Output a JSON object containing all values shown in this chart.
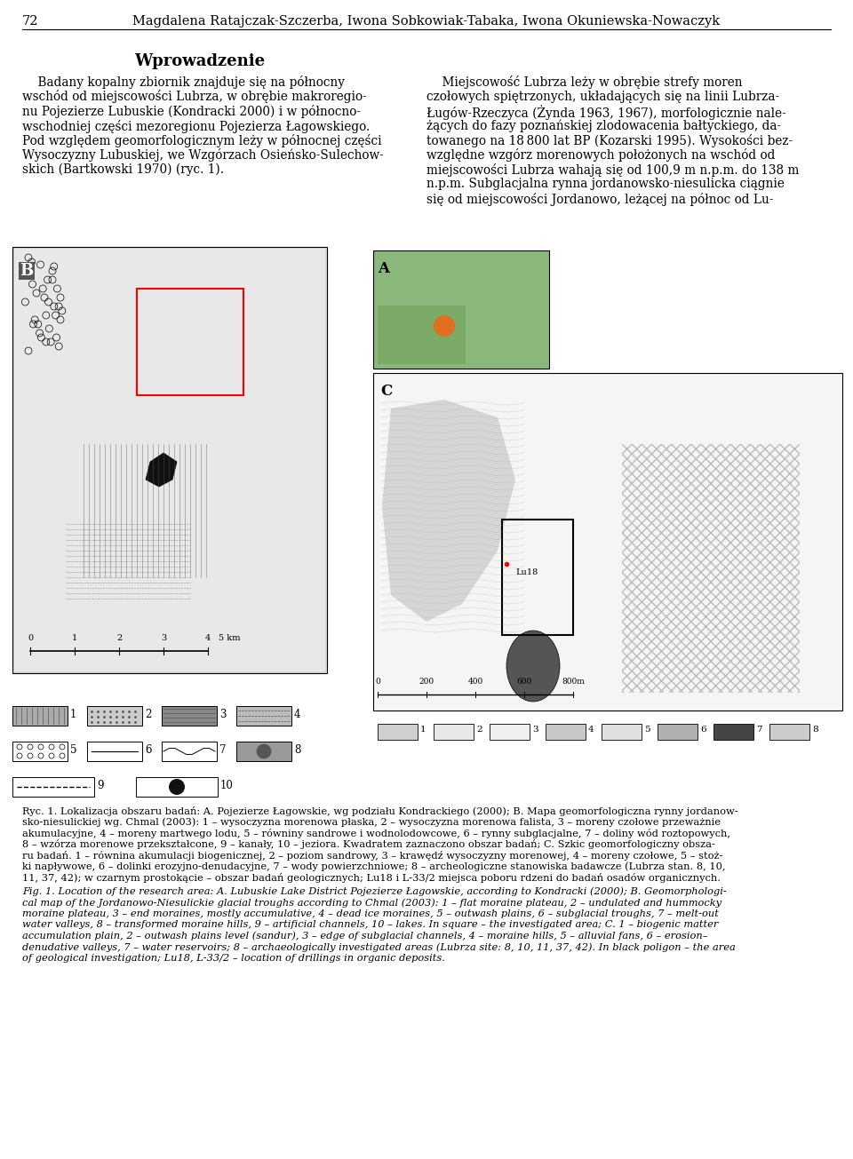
{
  "page_number": "72",
  "header_text": "Magdalena Ratajczak-Szczerba, Iwona Sobkowiak-Tabaka, Iwona Okuniewska-Nowaczyk",
  "section_title": "Wprowadzenie",
  "left_col_lines": [
    "    Badany kopalny zbiornik znajduje się na północny",
    "wschód od miejscowości Lubrza, w obrębie makroregio-",
    "nu Pojezierze Lubuskie (Kondracki 2000) i w północno-",
    "wschodniej części mezoregionu Pojezierza Łagowskiego.",
    "Pod względem geomorfologicznym leży w północnej części",
    "Wysoczyzny Lubuskiej, we Wzgórzach Osieńsko-Sulechow-",
    "skich (Bartkowski 1970) (ryc. 1)."
  ],
  "right_col_lines": [
    "    Miejscowość Lubrza leży w obrębie strefy moren",
    "czołowych spiętrzonych, układających się na linii Lubrza-",
    "Ługów-Rzeczyca (Żynda 1963, 1967), morfologicznie nale-",
    "żących do fazy poznańskiej zlodowacenia bałtyckiego, da-",
    "towanego na 18 800 lat BP (Kozarski 1995). Wysokości bez-",
    "względne wzgórz morenowych położonych na wschód od",
    "miejscowości Lubrza wahają się od 100,9 m n.p.m. do 138 m",
    "n.p.m. Subglacjalna rynna jordanowsko-niesulicka ciągnie",
    "się od miejscowości Jordanowo, leżącej na północ od Lu-"
  ],
  "caption_pl_line1": "Ryc. 1. Lokalizacja obszaru badań: A. Pojezierze Łagowskie, wg podziału Kondrackiego (2000); B. Mapa geomorfologiczna rynny jordanow-",
  "caption_pl_line2": "sko-niesulickiej wg. Chmal (2003): 1 – wysoczyzna morenowa płaska, 2 – wysoczyzna morenowa falista, 3 – moreny czołowe przeważnie",
  "caption_pl_line3": "akumulacyjne, 4 – moreny martwego lodu, 5 – równiny sandrowe i wodnolodowcowe, 6 – rynny subglacjalne, 7 – doliny wód roztopowych,",
  "caption_pl_line4": "8 – wzórza morenowe przekształcone, 9 – kanały, 10 – jeziora. Kwadratem zaznaczono obszar badań; C. Szkic geomorfologiczny obsza-",
  "caption_pl_line4b": "ru badań. 1 – równina akumulacji biogenicznej, 2 – poziom sandrowy, 3 – krawędź wysoczyzny morenowej, 4 – moreny czołowe, 5 – stoż-",
  "caption_pl_line5": "ki napływowe, 6 – dolinki erozyjno-denudacyjne, 7 – wody powierzchniowe; 8 – archeologiczne stanowiska badawcze (Lubrza stan. 8, 10,",
  "caption_pl_line6": "11, 37, 42); w czarnym prostokącie – obszar badań geologicznych; Lu18 i L-33/2 miejsca poboru rdzeni do badań osadów organicznych.",
  "caption_en_line1": "Fig. 1. Location of the research area: A. Lubuskie Lake District Pojezierze Łagowskie, according to Kondracki (2000); B. Geomorphologi-",
  "caption_en_line2": "cal map of the Jordanowo-Niesulickie glacial troughs according to Chmal (2003): 1 – flat moraine plateau, 2 – undulated and hummocky",
  "caption_en_line3": "moraine plateau, 3 – end moraines, mostly accumulative, 4 – dead ice moraines, 5 – outwash plains, 6 – subglacial troughs, 7 – melt-out",
  "caption_en_line4": "water valleys, 8 – transformed moraine hills, 9 – artificial channels, 10 – lakes. In square – the investigated area; C. 1 – biogenic matter",
  "caption_en_line5": "accumulation plain, 2 – outwash plains level (sandur), 3 – edge of subglacial channels, 4 – moraine hills, 5 – alluvial fans, 6 – erosion–",
  "caption_en_line6": "denudative valleys, 7 – water reservoirs; 8 – archaeologically investigated areas (Lubrza site: 8, 10, 11, 37, 42). In black poligon – the area",
  "caption_en_line7": "of geological investigation; Lu18, L-33/2 – location of drillings in organic deposits.",
  "bg_color": "#ffffff",
  "text_color": "#000000"
}
